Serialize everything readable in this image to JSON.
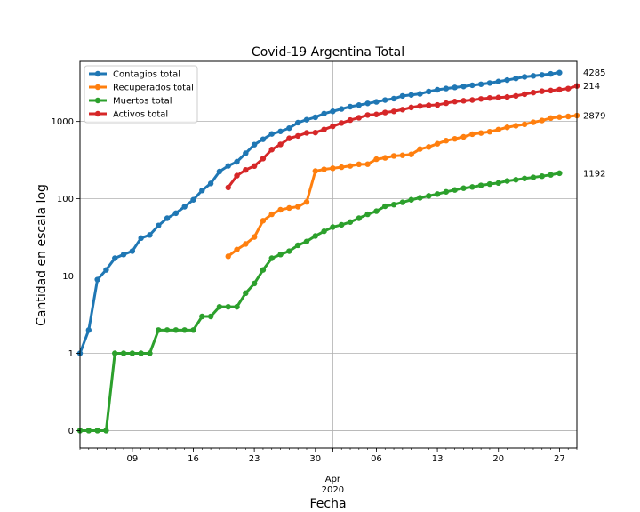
{
  "chart_data": {
    "type": "line",
    "title": "Covid-19 Argentina Total",
    "xlabel": "Fecha",
    "ylabel": "Cantidad en escala log",
    "yscale": "symlog",
    "grid": true,
    "legend_position": "top-left",
    "x_start": "2020-03-03",
    "x_end": "2020-04-29",
    "x_tick_labels": [
      "09",
      "16",
      "23",
      "30",
      "06",
      "13",
      "20",
      "27"
    ],
    "x_tick_days": [
      6,
      13,
      20,
      27,
      34,
      41,
      48,
      55
    ],
    "x_month_label": "Apr",
    "x_year_label": "2020",
    "x_month_day": 29,
    "y_tick_labels": [
      "0",
      "1",
      "10",
      "100",
      "1000"
    ],
    "y_tick_values": [
      0,
      1,
      10,
      100,
      1000
    ],
    "series": [
      {
        "name": "Contagios total",
        "color": "#1f77b4",
        "start_day": 0,
        "values": [
          1,
          2,
          9,
          12,
          17,
          19,
          21,
          31,
          34,
          45,
          56,
          65,
          79,
          97,
          128,
          158,
          225,
          266,
          301,
          387,
          502,
          589,
          690,
          745,
          820,
          966,
          1054,
          1133,
          1265,
          1353,
          1451,
          1554,
          1628,
          1715,
          1795,
          1894,
          1975,
          2142,
          2208,
          2277,
          2443,
          2571,
          2669,
          2758,
          2839,
          2941,
          3031,
          3144,
          3288,
          3435,
          3607,
          3780,
          3892,
          4003,
          4127,
          4285
        ]
      },
      {
        "name": "Recuperados total",
        "color": "#ff7f0e",
        "start_day": 17,
        "values": [
          18,
          22,
          26,
          32,
          52,
          63,
          72,
          76,
          79,
          91,
          228,
          240,
          248,
          256,
          266,
          279,
          280,
          325,
          338,
          358,
          365,
          375,
          440,
          468,
          515,
          565,
          596,
          632,
          685,
          709,
          737,
          785,
          840,
          881,
          919,
          976,
          1030,
          1107,
          1140,
          1162,
          1192
        ]
      },
      {
        "name": "Muertos total",
        "color": "#2ca02c",
        "start_day": 0,
        "values": [
          0,
          0,
          0,
          0,
          1,
          1,
          1,
          1,
          1,
          2,
          2,
          2,
          2,
          2,
          3,
          3,
          4,
          4,
          4,
          6,
          8,
          12,
          17,
          19,
          21,
          25,
          28,
          33,
          38,
          43,
          46,
          50,
          56,
          63,
          69,
          80,
          84,
          90,
          97,
          103,
          109,
          115,
          123,
          130,
          137,
          142,
          149,
          155,
          160,
          170,
          176,
          183,
          189,
          196,
          204,
          214
        ]
      },
      {
        "name": "Activos total",
        "color": "#d62728",
        "start_day": 17,
        "values": [
          140,
          199,
          236,
          265,
          331,
          433,
          505,
          605,
          650,
          712,
          718,
          787,
          867,
          955,
          1043,
          1118,
          1212,
          1233,
          1307,
          1352,
          1425,
          1519,
          1584,
          1617,
          1637,
          1725,
          1812,
          1854,
          1896,
          1959,
          2012,
          2039,
          2075,
          2143,
          2256,
          2366,
          2463,
          2512,
          2579,
          2663,
          2879
        ]
      }
    ],
    "end_labels": [
      "4285",
      "2879",
      "1192",
      "214"
    ]
  }
}
